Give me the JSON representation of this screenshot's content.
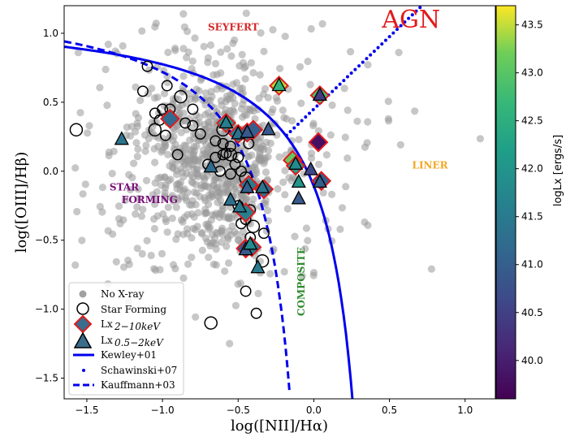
{
  "chart_data": {
    "type": "scatter",
    "title": "",
    "xlabel": "log([NII]/Hα)",
    "ylabel": "log([OIII]/Hβ)",
    "xlim": [
      -1.65,
      1.2
    ],
    "ylim": [
      -1.65,
      1.2
    ],
    "xticks": [
      -1.5,
      -1.0,
      -0.5,
      0.0,
      0.5,
      1.0
    ],
    "xtick_labels": [
      "−1.5",
      "−1.0",
      "−0.5",
      "0.0",
      "0.5",
      "1.0"
    ],
    "yticks": [
      -1.5,
      -1.0,
      -0.5,
      0.0,
      0.5,
      1.0
    ],
    "ytick_labels": [
      "−1.5",
      "−1.0",
      "−0.5",
      "0.0",
      "0.5",
      "1.0"
    ],
    "colorbar": {
      "label": "logLx [ergs/s]",
      "range": [
        39.6,
        43.7
      ],
      "ticks": [
        40.0,
        40.5,
        41.0,
        41.5,
        42.0,
        42.5,
        43.0,
        43.5
      ],
      "tick_labels": [
        "40.0",
        "40.5",
        "41.0",
        "41.5",
        "42.0",
        "42.5",
        "43.0",
        "43.5"
      ],
      "colormap": "viridis"
    },
    "region_labels": [
      {
        "text": "SEYFERT",
        "x": -0.7,
        "y": 1.02,
        "color": "#d62728",
        "size": 12
      },
      {
        "text": "AGN",
        "x": 0.45,
        "y": 1.04,
        "color": "#e31a1c",
        "size": 30
      },
      {
        "text": "LINER",
        "x": 0.65,
        "y": 0.02,
        "color": "#f5a623",
        "size": 12
      },
      {
        "text": "STAR",
        "x": -1.35,
        "y": -0.14,
        "color": "#7a0f7a",
        "size": 12
      },
      {
        "text": "FORMING",
        "x": -1.27,
        "y": -0.23,
        "color": "#7a0f7a",
        "size": 12
      },
      {
        "text": "COMPOSITE",
        "x": -0.06,
        "y": -1.05,
        "color": "#2e8b2e",
        "size": 12,
        "rotate": -90
      }
    ],
    "legend": {
      "position": "lower-left",
      "entries": [
        "No X-ray",
        "Star Forming",
        "Lx",
        "2−10keV",
        "Lx",
        "0.5−2keV",
        "Kewley+01",
        "Schawinski+07",
        "Kauffmann+03"
      ]
    },
    "lines": [
      {
        "name": "Kewley+01",
        "style": "solid",
        "color": "#0000ee",
        "formula": "0.61/(x-0.47)+1.19",
        "x_range": [
          -1.65,
          0.26
        ]
      },
      {
        "name": "Kauffmann+03",
        "style": "dashed",
        "color": "#0000ee",
        "formula": "0.61/(x-0.05)+1.3",
        "x_range": [
          -1.65,
          -0.16
        ]
      },
      {
        "name": "Schawinski+07",
        "style": "dotted",
        "color": "#0000ee",
        "formula": "1.05*x+0.45",
        "x_range": [
          -0.18,
          0.72
        ]
      }
    ],
    "series": [
      {
        "name": "Star Forming",
        "marker": "open-circle",
        "points": [
          [
            -1.57,
            0.3
          ],
          [
            -1.1,
            0.76
          ],
          [
            -1.13,
            0.58
          ],
          [
            -0.97,
            0.62
          ],
          [
            -1.05,
            0.42
          ],
          [
            -0.88,
            0.54
          ],
          [
            -1.0,
            0.45
          ],
          [
            -0.95,
            0.4
          ],
          [
            -1.02,
            0.37
          ],
          [
            -0.98,
            0.26
          ],
          [
            -1.05,
            0.3
          ],
          [
            -0.85,
            0.35
          ],
          [
            -0.8,
            0.45
          ],
          [
            -0.8,
            0.33
          ],
          [
            -0.75,
            0.27
          ],
          [
            -0.6,
            0.3
          ],
          [
            -0.65,
            0.22
          ],
          [
            -0.55,
            0.18
          ],
          [
            -0.65,
            0.1
          ],
          [
            -0.6,
            0.12
          ],
          [
            -0.55,
            0.12
          ],
          [
            -0.5,
            0.1
          ],
          [
            -0.7,
            0.05
          ],
          [
            -0.52,
            0.05
          ],
          [
            -0.48,
            0.0
          ],
          [
            -0.45,
            -0.05
          ],
          [
            -0.55,
            -0.02
          ],
          [
            -0.5,
            -0.25
          ],
          [
            -0.42,
            -0.28
          ],
          [
            -0.45,
            -0.35
          ],
          [
            -0.4,
            -0.4
          ],
          [
            -0.48,
            -0.38
          ],
          [
            -0.42,
            -0.48
          ],
          [
            -0.33,
            -0.45
          ],
          [
            -0.38,
            -1.03
          ],
          [
            -0.34,
            -0.65
          ],
          [
            -0.9,
            0.12
          ],
          [
            -0.95,
            0.45
          ],
          [
            -0.6,
            0.2
          ],
          [
            -0.58,
            0.13
          ],
          [
            -0.68,
            -1.1
          ],
          [
            -0.45,
            -0.87
          ],
          [
            -0.43,
            0.2
          ],
          [
            -0.62,
            0.0
          ]
        ]
      },
      {
        "name": "Lx 2-10keV",
        "marker": "diamond",
        "points": [
          {
            "x": -0.23,
            "y": 0.62,
            "lx": 43.45
          },
          {
            "x": 0.04,
            "y": 0.55,
            "lx": 42.85
          },
          {
            "x": -0.95,
            "y": 0.38,
            "lx": 41.2
          },
          {
            "x": -0.58,
            "y": 0.35,
            "lx": 42.0
          },
          {
            "x": -0.5,
            "y": 0.27,
            "lx": 41.7
          },
          {
            "x": -0.44,
            "y": 0.28,
            "lx": 41.2
          },
          {
            "x": -0.4,
            "y": 0.3,
            "lx": 41.0
          },
          {
            "x": 0.03,
            "y": 0.21,
            "lx": 39.8
          },
          {
            "x": -0.14,
            "y": 0.08,
            "lx": 43.1
          },
          {
            "x": -0.12,
            "y": 0.04,
            "lx": 42.2
          },
          {
            "x": -0.43,
            "y": -0.1,
            "lx": 41.5
          },
          {
            "x": -0.33,
            "y": -0.13,
            "lx": 41.3
          },
          {
            "x": 0.05,
            "y": -0.07,
            "lx": 41.0
          },
          {
            "x": -0.45,
            "y": -0.3,
            "lx": 41.6
          },
          {
            "x": -0.45,
            "y": -0.56,
            "lx": 40.9
          },
          {
            "x": -0.41,
            "y": -0.55,
            "lx": 41.5
          }
        ]
      },
      {
        "name": "Lx 0.5-2keV",
        "marker": "triangle",
        "points": [
          {
            "x": -0.23,
            "y": 0.62,
            "lx": 42.6
          },
          {
            "x": 0.04,
            "y": 0.55,
            "lx": 40.4
          },
          {
            "x": -1.27,
            "y": 0.23,
            "lx": 41.4
          },
          {
            "x": -0.58,
            "y": 0.35,
            "lx": 41.6
          },
          {
            "x": -0.5,
            "y": 0.27,
            "lx": 41.3
          },
          {
            "x": -0.44,
            "y": 0.28,
            "lx": 40.9
          },
          {
            "x": -0.3,
            "y": 0.3,
            "lx": 40.9
          },
          {
            "x": -0.12,
            "y": 0.05,
            "lx": 41.8
          },
          {
            "x": -0.1,
            "y": -0.08,
            "lx": 42.0
          },
          {
            "x": -0.68,
            "y": 0.03,
            "lx": 41.2
          },
          {
            "x": -0.44,
            "y": -0.12,
            "lx": 41.0
          },
          {
            "x": -0.55,
            "y": -0.21,
            "lx": 41.3
          },
          {
            "x": -0.1,
            "y": -0.2,
            "lx": 40.9
          },
          {
            "x": -0.49,
            "y": -0.26,
            "lx": 41.5
          },
          {
            "x": 0.04,
            "y": -0.08,
            "lx": 41.0
          },
          {
            "x": -0.45,
            "y": -0.57,
            "lx": 40.9
          },
          {
            "x": -0.42,
            "y": -0.53,
            "lx": 41.8
          },
          {
            "x": -0.37,
            "y": -0.7,
            "lx": 41.5
          },
          {
            "x": -0.34,
            "y": -0.12,
            "lx": 41.4
          },
          {
            "x": -0.02,
            "y": 0.01,
            "lx": 40.6
          }
        ]
      }
    ]
  }
}
